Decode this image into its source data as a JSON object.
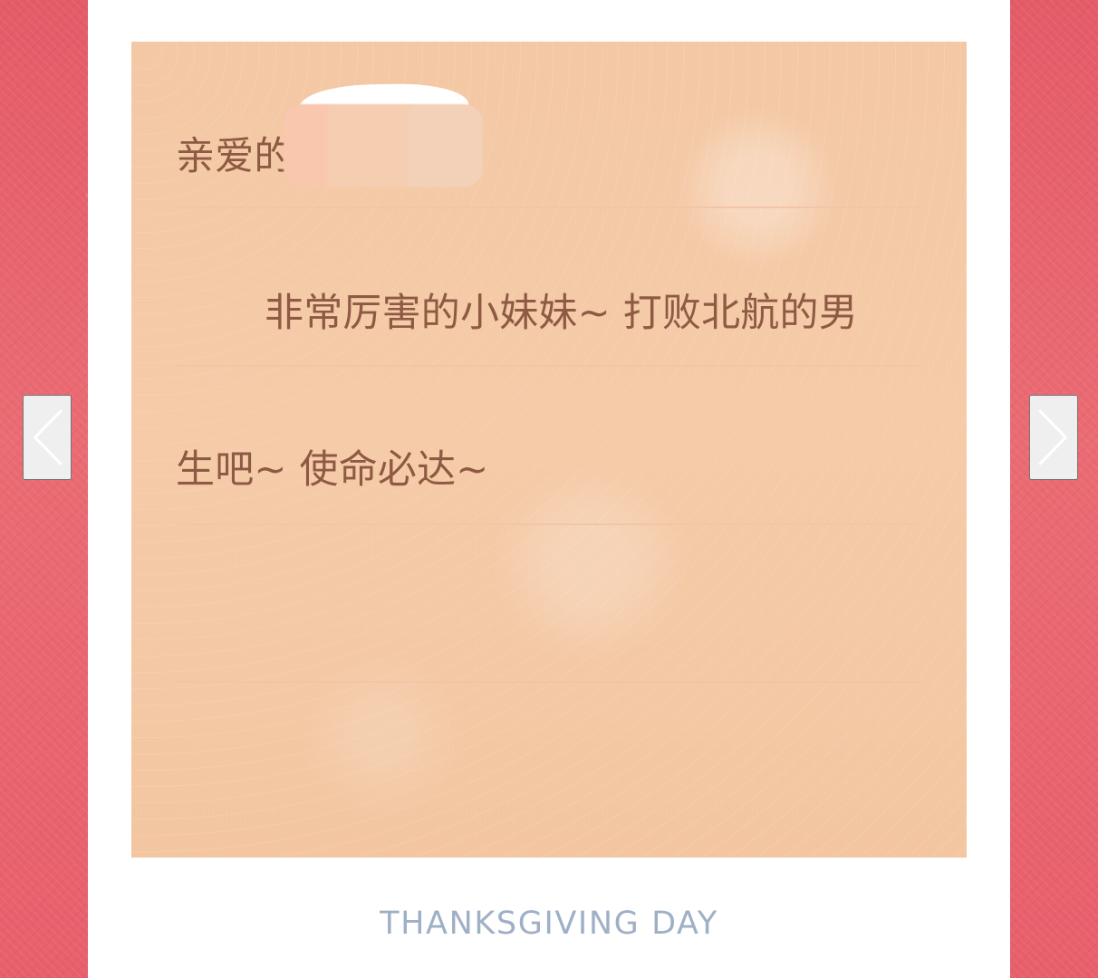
{
  "letter": {
    "greeting": "亲爱的",
    "line1": "非常厉害的小妹妹~ 打败北航的男",
    "line2": "生吧~ 使命必达~"
  },
  "footer": {
    "text": "THANKSGIVING DAY"
  },
  "navigation": {
    "previous_icon": "chevron-left-icon",
    "next_icon": "chevron-right-icon"
  },
  "colors": {
    "background": "#e9636e",
    "paper": "#f4c8a4",
    "text": "#8e5a43",
    "footer": "#9fb0c6"
  }
}
